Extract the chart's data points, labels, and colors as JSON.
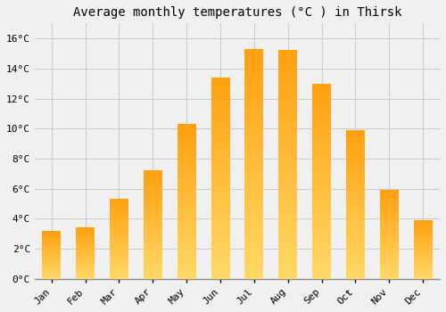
{
  "title": "Average monthly temperatures (°C ) in Thirsk",
  "months": [
    "Jan",
    "Feb",
    "Mar",
    "Apr",
    "May",
    "Jun",
    "Jul",
    "Aug",
    "Sep",
    "Oct",
    "Nov",
    "Dec"
  ],
  "temperatures": [
    3.2,
    3.4,
    5.3,
    7.2,
    10.3,
    13.4,
    15.3,
    15.2,
    13.0,
    9.9,
    5.9,
    3.9
  ],
  "bar_color_bottom": "#FFD966",
  "bar_color_top": "#FFA010",
  "background_color": "#F0F0F0",
  "grid_color": "#CCCCCC",
  "ylim": [
    0,
    17
  ],
  "yticks": [
    0,
    2,
    4,
    6,
    8,
    10,
    12,
    14,
    16
  ],
  "title_fontsize": 10,
  "tick_fontsize": 8,
  "font_family": "monospace",
  "bar_width": 0.55
}
